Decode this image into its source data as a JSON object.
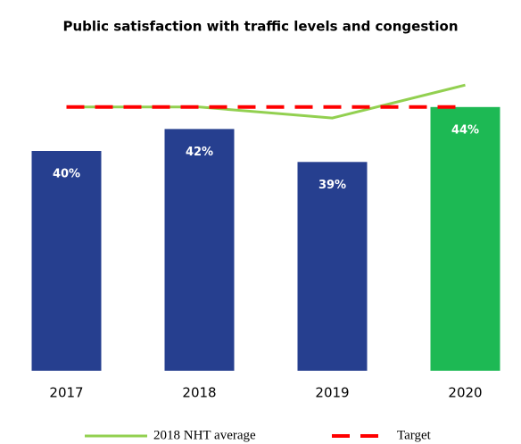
{
  "chart_data": {
    "type": "bar",
    "title": "Public satisfaction with traffic levels and congestion",
    "categories": [
      "2017",
      "2018",
      "2019",
      "2020"
    ],
    "values": [
      40,
      42,
      39,
      44
    ],
    "value_labels": [
      "40%",
      "42%",
      "39%",
      "44%"
    ],
    "colors": [
      "#263f8f",
      "#263f8f",
      "#263f8f",
      "#1db954"
    ],
    "ylim": [
      20,
      50
    ],
    "series": [
      {
        "name": "2018 NHT average",
        "color": "#92d050",
        "values": [
          44,
          44,
          43,
          46
        ],
        "dashed": false
      },
      {
        "name": "Target",
        "color": "#ff0000",
        "values": [
          44,
          44,
          44,
          44
        ],
        "dashed": true
      }
    ]
  }
}
